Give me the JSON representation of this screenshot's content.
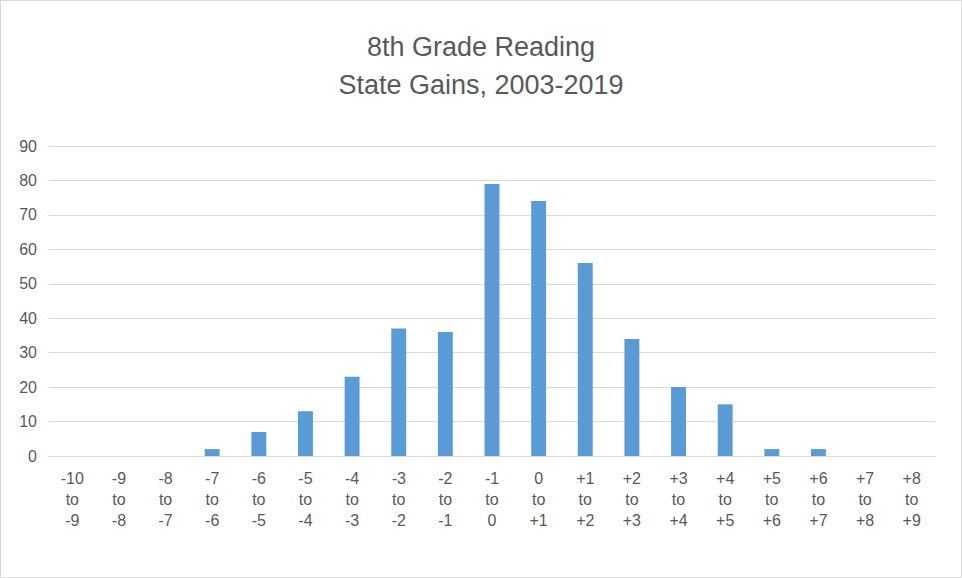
{
  "chart_data": {
    "type": "bar",
    "title": "8th Grade Reading\nState Gains, 2003-2019",
    "categories": [
      "-10 to -9",
      "-9 to -8",
      "-8 to -7",
      "-7 to -6",
      "-6 to -5",
      "-5 to -4",
      "-4 to -3",
      "-3 to -2",
      "-2 to -1",
      "-1 to 0",
      "0 to +1",
      "+1 to +2",
      "+2 to +3",
      "+3 to +4",
      "+4 to +5",
      "+5 to +6",
      "+6 to +7",
      "+7 to +8",
      "+8 to +9"
    ],
    "values": [
      0,
      0,
      0,
      2,
      7,
      13,
      23,
      37,
      36,
      79,
      74,
      56,
      34,
      20,
      15,
      2,
      2,
      0,
      0
    ],
    "color": "#5b9bd5",
    "ylim": [
      0,
      90
    ],
    "yticks": [
      0,
      10,
      20,
      30,
      40,
      50,
      60,
      70,
      80,
      90
    ],
    "grid": true,
    "data_labels": false
  }
}
